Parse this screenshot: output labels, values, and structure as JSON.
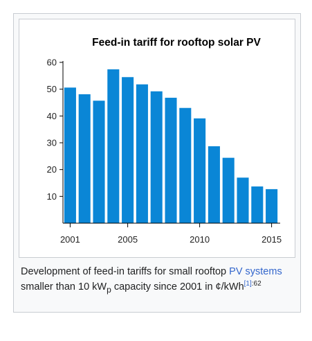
{
  "chart_data": {
    "type": "bar",
    "title": "Feed-in tariff for rooftop solar PV",
    "xlabel": "",
    "ylabel": "",
    "x": [
      2001,
      2002,
      2003,
      2004,
      2005,
      2006,
      2007,
      2008,
      2009,
      2010,
      2011,
      2012,
      2013,
      2014,
      2015
    ],
    "values": [
      50.6,
      48.1,
      45.7,
      57.4,
      54.5,
      51.8,
      49.2,
      46.8,
      43.0,
      39.1,
      28.7,
      24.4,
      17.0,
      13.7,
      12.7
    ],
    "ylim": [
      0,
      60
    ],
    "yticks": [
      10,
      20,
      30,
      40,
      50,
      60
    ],
    "xticks": [
      2001,
      2005,
      2010,
      2015
    ],
    "xlim": [
      2000.5,
      2015.5
    ],
    "bar_color": "#0a86d6",
    "grid": false
  },
  "caption": {
    "text1": "Development of feed-in tariffs for small rooftop ",
    "link1": "PV systems",
    "text2": " smaller than 10 kW",
    "sub": "p",
    "text3": " capacity since 2001 in ¢/kWh",
    "ref": "[1]",
    "page": ":62"
  },
  "colors": {
    "link": "#3366cc",
    "text": "#202122"
  }
}
